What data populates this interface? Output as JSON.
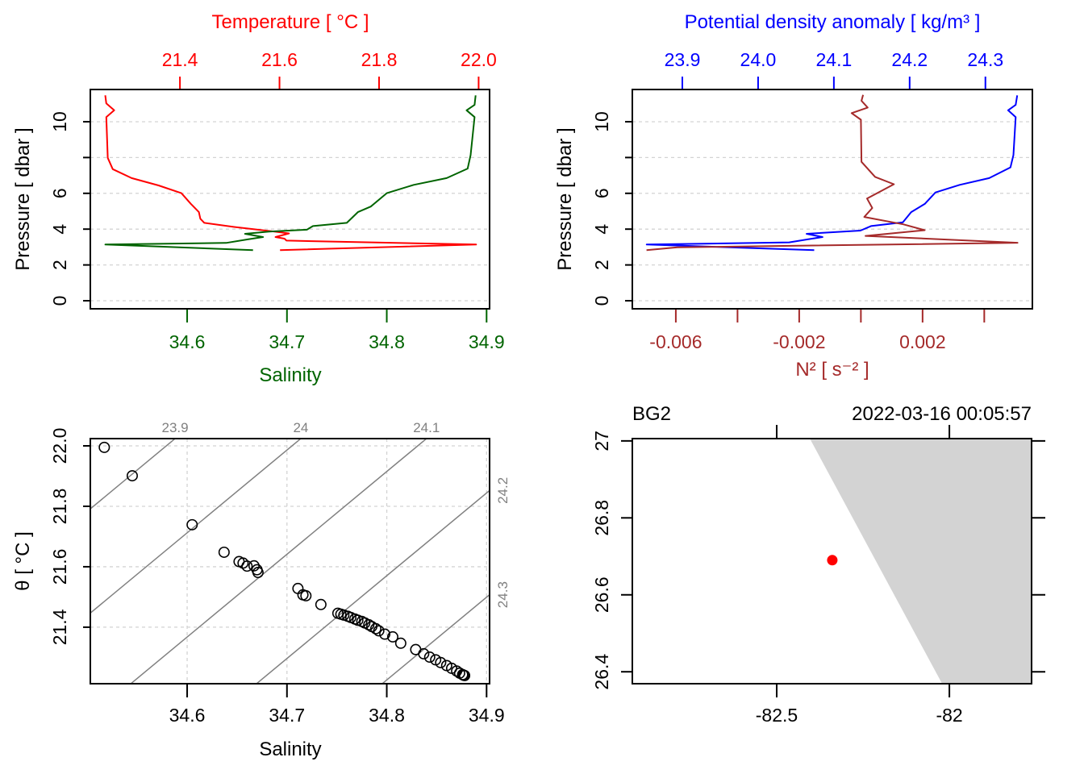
{
  "colors": {
    "temperature": "#FF0000",
    "salinity": "#006400",
    "density": "#0000FF",
    "n2": "#A52A2A",
    "isopycnal": "#808080",
    "land": "#D3D3D3",
    "station": "#FF0000",
    "grid": "#D3D3D3"
  },
  "chart_data": [
    {
      "type": "line",
      "top_axis_label": "Temperature [ °C ]",
      "bottom_axis_label": "Salinity",
      "ylabel": "Pressure [ dbar ]",
      "ylim": [
        11.8,
        -0.45
      ],
      "y_ticks": [
        0,
        2,
        4,
        6,
        8,
        10
      ],
      "y_tick_labels": [
        "0",
        "2",
        "4",
        "6",
        "",
        "10"
      ],
      "grid": "horizontal dashed",
      "top_axis": {
        "lim": [
          21.22,
          22.022
        ],
        "ticks": [
          21.4,
          21.6,
          21.8,
          22.0
        ],
        "tick_labels": [
          "21.4",
          "21.6",
          "21.8",
          "22.0"
        ]
      },
      "bottom_axis": {
        "lim": [
          34.503,
          34.903
        ],
        "ticks": [
          34.6,
          34.7,
          34.8,
          34.9
        ],
        "tick_labels": [
          "34.6",
          "34.7",
          "34.8",
          "34.9"
        ]
      },
      "series": [
        {
          "name": "Temperature",
          "axis": "top",
          "color": "#FF0000",
          "pressure": [
            2.83,
            3.14,
            3.36,
            3.47,
            3.56,
            3.76,
            3.86,
            4.12,
            4.35,
            4.58,
            4.95,
            5.41,
            6.01,
            6.44,
            6.85,
            7.35,
            7.98,
            10.26,
            10.64,
            11.02,
            11.47
          ],
          "values": [
            21.601,
            21.995,
            21.614,
            21.61,
            21.592,
            21.619,
            21.59,
            21.509,
            21.449,
            21.441,
            21.438,
            21.422,
            21.403,
            21.357,
            21.303,
            21.265,
            21.255,
            21.252,
            21.268,
            21.252,
            21.25
          ]
        },
        {
          "name": "Salinity",
          "axis": "bottom",
          "color": "#006400",
          "pressure": [
            2.83,
            3.14,
            3.23,
            3.44,
            3.56,
            3.74,
            3.86,
            3.97,
            4.17,
            4.35,
            4.95,
            5.26,
            6.01,
            6.47,
            6.85,
            7.38,
            8.14,
            10.26,
            10.64,
            10.94,
            11.47
          ],
          "values": [
            34.666,
            34.518,
            34.639,
            34.662,
            34.676,
            34.658,
            34.682,
            34.72,
            34.726,
            34.76,
            34.771,
            34.784,
            34.8,
            34.827,
            34.86,
            34.881,
            34.884,
            34.888,
            34.88,
            34.888,
            34.889
          ]
        }
      ]
    },
    {
      "type": "line",
      "top_axis_label": "Potential density anomaly [ kg/m³ ]",
      "bottom_axis_label": "N² [ s⁻² ]",
      "ylabel": "Pressure [ dbar ]",
      "ylim": [
        11.8,
        -0.45
      ],
      "y_ticks": [
        0,
        2,
        4,
        6,
        8,
        10
      ],
      "y_tick_labels": [
        "0",
        "2",
        "4",
        "6",
        "",
        "10"
      ],
      "grid": "horizontal dashed",
      "top_axis": {
        "lim": [
          23.834,
          24.362
        ],
        "ticks": [
          23.9,
          24.0,
          24.1,
          24.2,
          24.3
        ],
        "tick_labels": [
          "23.9",
          "24.0",
          "24.1",
          "24.2",
          "24.3"
        ]
      },
      "bottom_axis": {
        "lim": [
          -0.00741,
          0.00556
        ],
        "ticks": [
          -0.006,
          -0.004,
          -0.002,
          0,
          0.002,
          0.004
        ],
        "tick_labels": [
          "-0.006",
          "",
          "-0.002",
          "",
          "0.002",
          ""
        ]
      },
      "series": [
        {
          "name": "Potential density anomaly",
          "axis": "top",
          "color": "#0000FF",
          "pressure": [
            2.83,
            3.14,
            3.26,
            3.44,
            3.56,
            3.74,
            3.92,
            4.17,
            4.38,
            4.95,
            5.41,
            6.05,
            6.47,
            6.85,
            7.45,
            8.14,
            10.26,
            10.64,
            10.94,
            11.47
          ],
          "values": [
            24.074,
            23.853,
            24.041,
            24.067,
            24.085,
            24.064,
            24.135,
            24.149,
            24.191,
            24.202,
            24.22,
            24.234,
            24.266,
            24.305,
            24.333,
            24.337,
            24.34,
            24.33,
            24.34,
            24.342
          ]
        },
        {
          "name": "N²",
          "axis": "bottom",
          "color": "#A52A2A",
          "pressure": [
            2.83,
            2.98,
            3.24,
            3.62,
            3.94,
            4.27,
            4.68,
            5.18,
            5.71,
            6.51,
            6.92,
            7.76,
            10.11,
            10.48,
            10.79,
            11.17,
            11.5
          ],
          "values": [
            -0.00695,
            -0.00595,
            0.00508,
            0.00015,
            0.00207,
            0.00137,
            0.00011,
            0.00037,
            0.0002,
            0.00107,
            0.00046,
            2e-05,
            0.0,
            -0.0003,
            0.00022,
            2e-05,
            7e-05
          ]
        }
      ]
    },
    {
      "type": "scatter",
      "xlabel": "Salinity",
      "ylabel": "θ [ °C ]",
      "xlim": [
        34.503,
        34.903
      ],
      "ylim": [
        21.213,
        22.024
      ],
      "x_ticks": [
        34.6,
        34.7,
        34.8,
        34.9
      ],
      "x_tick_labels": [
        "34.6",
        "34.7",
        "34.8",
        "34.9"
      ],
      "y_ticks": [
        21.4,
        21.6,
        21.8,
        22.0
      ],
      "y_tick_labels": [
        "21.4",
        "21.6",
        "21.8",
        "22.0"
      ],
      "grid": "both dashed",
      "isopycnals": [
        23.9,
        24.0,
        24.1,
        24.2,
        24.3
      ],
      "isopycnal_labels": [
        "23.9",
        "24",
        "24.1",
        "24.2",
        "24.3"
      ],
      "points": [
        [
          34.517,
          21.995
        ],
        [
          34.545,
          21.901
        ],
        [
          34.605,
          21.739
        ],
        [
          34.637,
          21.648
        ],
        [
          34.652,
          21.617
        ],
        [
          34.656,
          21.612
        ],
        [
          34.66,
          21.602
        ],
        [
          34.667,
          21.603
        ],
        [
          34.67,
          21.59
        ],
        [
          34.671,
          21.581
        ],
        [
          34.711,
          21.528
        ],
        [
          34.716,
          21.507
        ],
        [
          34.719,
          21.504
        ],
        [
          34.734,
          21.475
        ],
        [
          34.751,
          21.446
        ],
        [
          34.754,
          21.443
        ],
        [
          34.757,
          21.44
        ],
        [
          34.761,
          21.436
        ],
        [
          34.764,
          21.432
        ],
        [
          34.768,
          21.427
        ],
        [
          34.771,
          21.423
        ],
        [
          34.775,
          21.419
        ],
        [
          34.778,
          21.414
        ],
        [
          34.782,
          21.408
        ],
        [
          34.785,
          21.402
        ],
        [
          34.789,
          21.395
        ],
        [
          34.792,
          21.388
        ],
        [
          34.798,
          21.377
        ],
        [
          34.806,
          21.368
        ],
        [
          34.814,
          21.347
        ],
        [
          34.829,
          21.326
        ],
        [
          34.837,
          21.312
        ],
        [
          34.843,
          21.301
        ],
        [
          34.849,
          21.292
        ],
        [
          34.854,
          21.283
        ],
        [
          34.86,
          21.273
        ],
        [
          34.865,
          21.264
        ],
        [
          34.87,
          21.255
        ],
        [
          34.873,
          21.248
        ],
        [
          34.876,
          21.243
        ],
        [
          34.877,
          21.241
        ],
        [
          34.878,
          21.24
        ]
      ]
    },
    {
      "type": "map",
      "station": "BG2",
      "datetime": "2022-03-16 00:05:57",
      "xlim": [
        -82.918,
        -81.762
      ],
      "ylim": [
        26.369,
        27.006
      ],
      "x_ticks": [
        -82.5,
        -82
      ],
      "x_tick_labels": [
        "-82.5",
        "-82"
      ],
      "y_ticks": [
        26.4,
        26.6,
        26.8,
        27
      ],
      "y_tick_labels": [
        "26.4",
        "26.6",
        "26.8",
        "27"
      ],
      "land_polygon": [
        [
          -82.404,
          27.006
        ],
        [
          -81.762,
          27.006
        ],
        [
          -81.762,
          26.369
        ],
        [
          -82.021,
          26.369
        ]
      ],
      "station_location": {
        "lon": -82.339,
        "lat": 26.69
      }
    }
  ]
}
